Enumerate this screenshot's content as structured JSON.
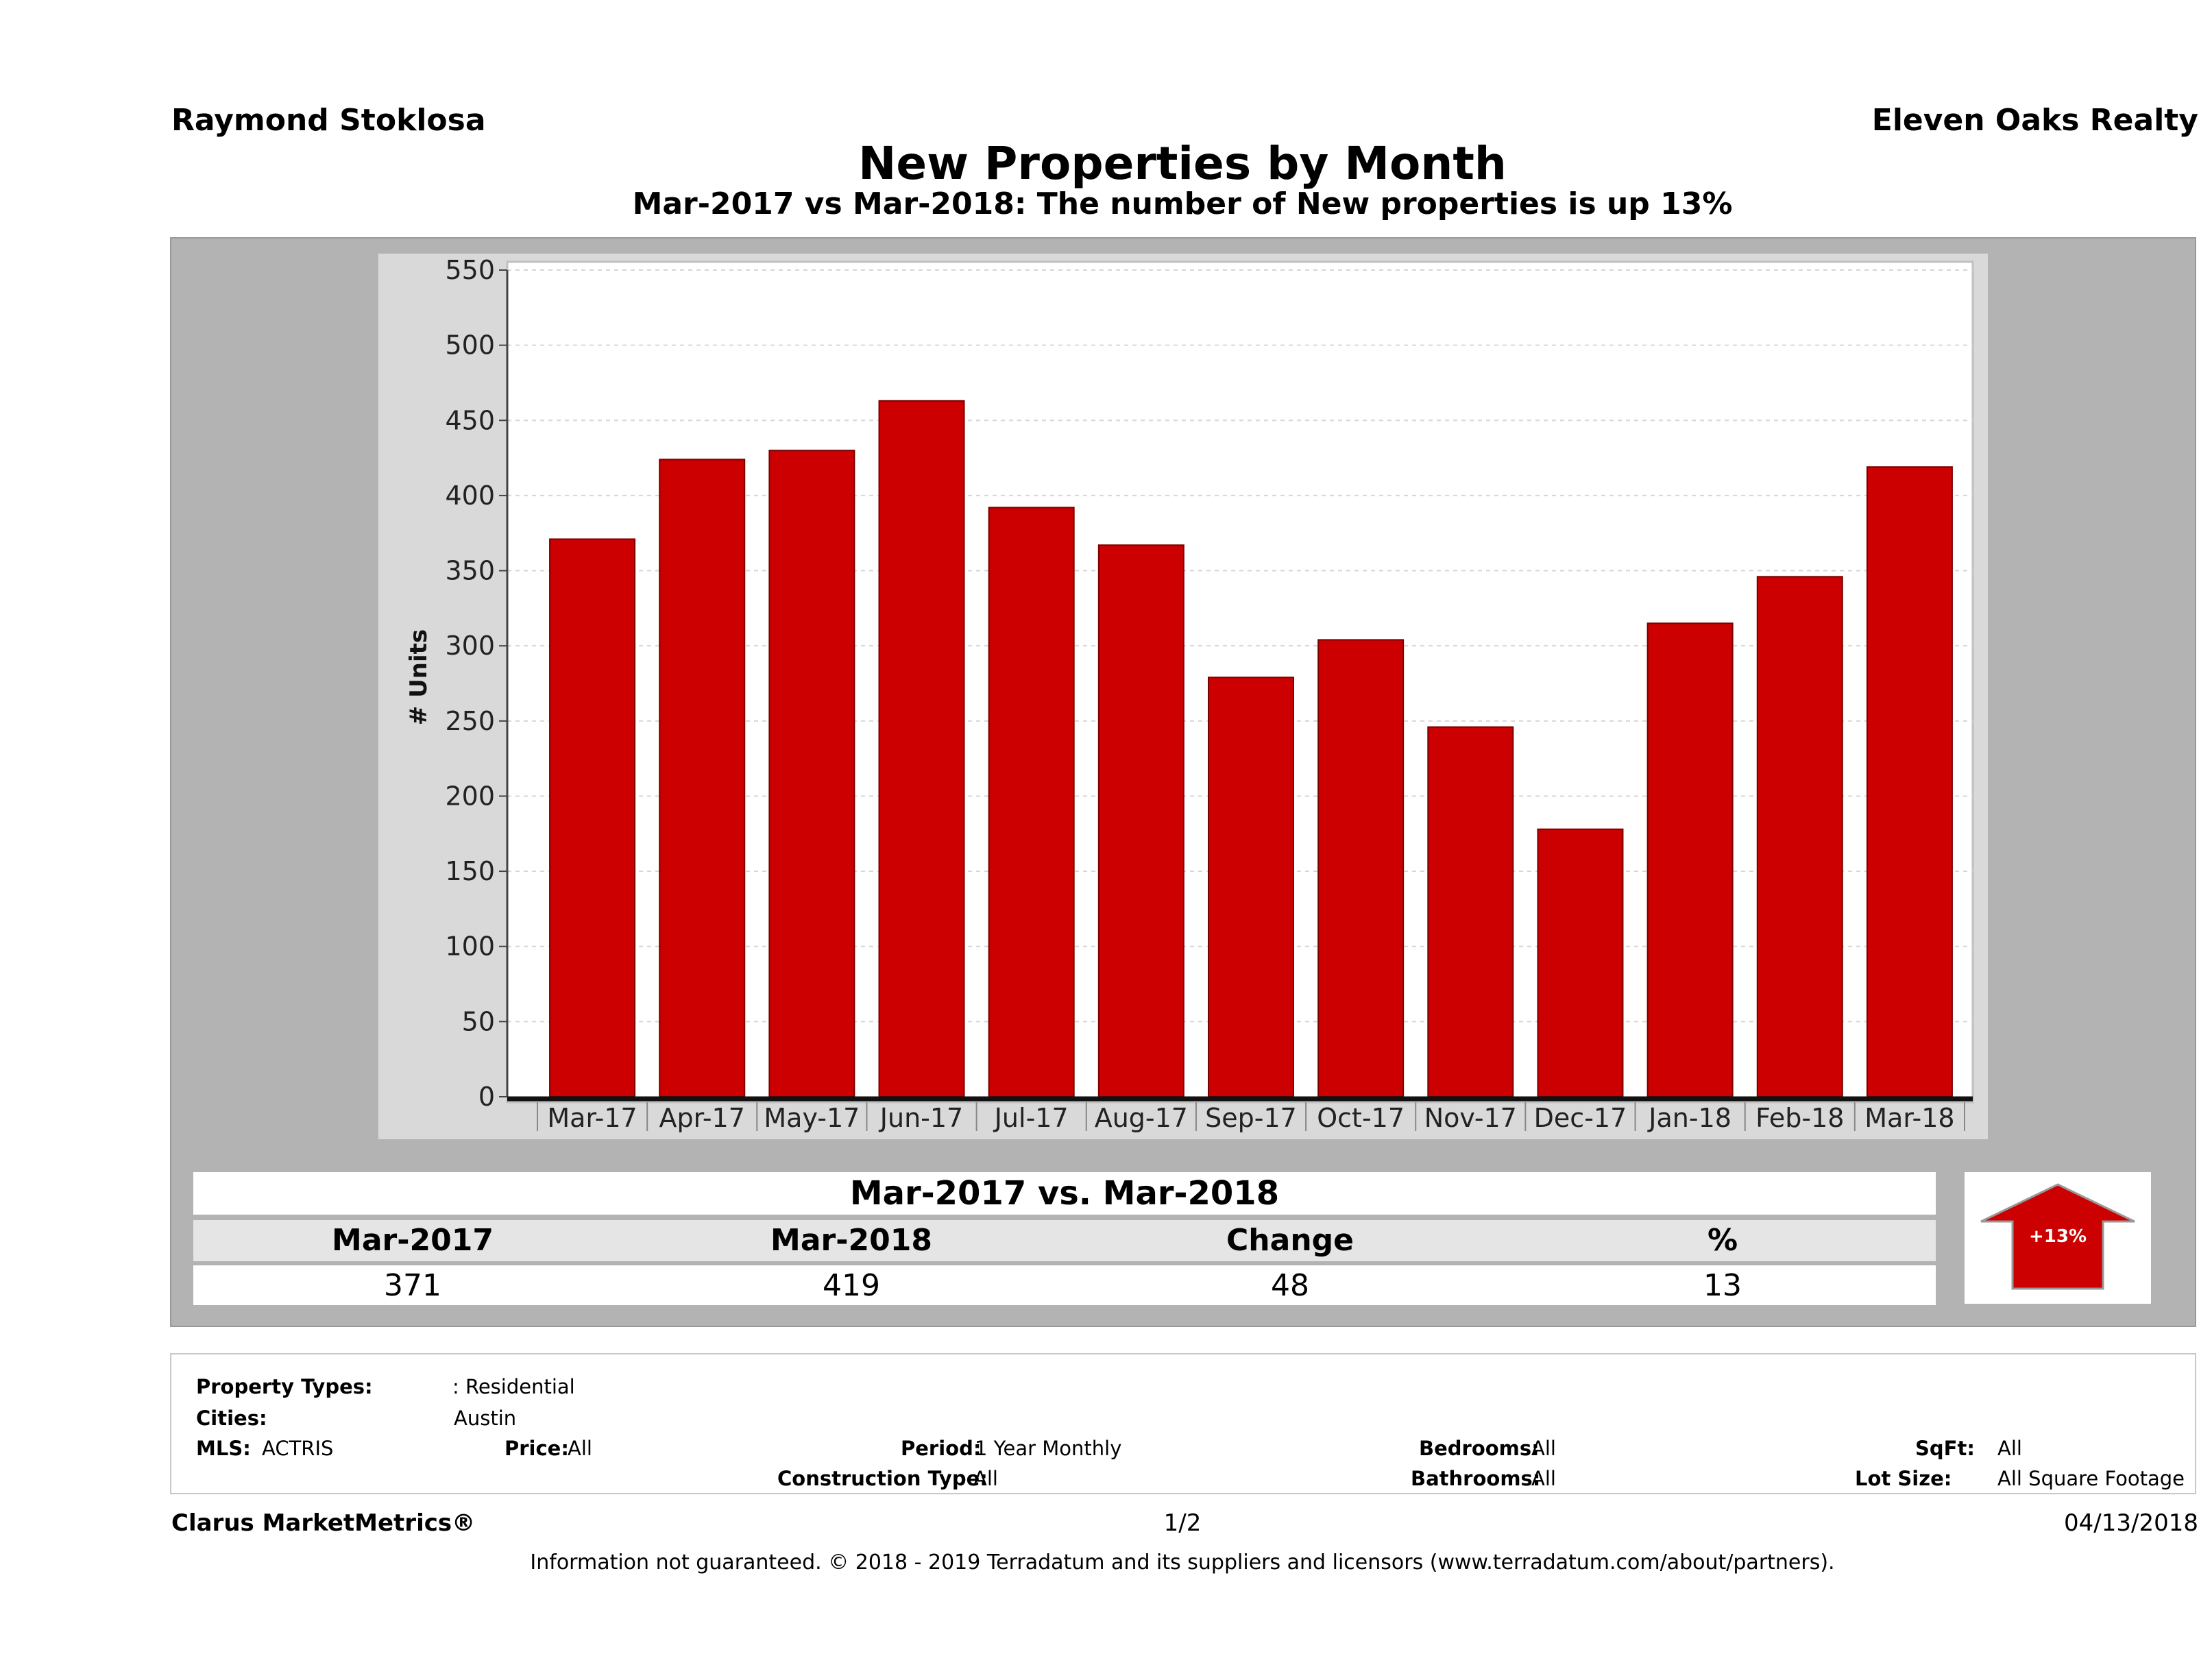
{
  "header": {
    "agent_name": "Raymond Stoklosa",
    "brokerage": "Eleven Oaks Realty",
    "title": "New Properties by Month",
    "subtitle": "Mar-2017 vs Mar-2018: The number of New  properties is up 13%"
  },
  "chart_data": {
    "type": "bar",
    "title": "New Properties by Month",
    "ylabel": "# Units",
    "xlabel": "",
    "ylim": [
      0,
      550
    ],
    "yticks": [
      0,
      50,
      100,
      150,
      200,
      250,
      300,
      350,
      400,
      450,
      500,
      550
    ],
    "categories": [
      "Mar-17",
      "Apr-17",
      "May-17",
      "Jun-17",
      "Jul-17",
      "Aug-17",
      "Sep-17",
      "Oct-17",
      "Nov-17",
      "Dec-17",
      "Jan-18",
      "Feb-18",
      "Mar-18"
    ],
    "values": [
      371,
      424,
      430,
      463,
      392,
      367,
      279,
      304,
      246,
      178,
      315,
      346,
      419
    ],
    "grid": true,
    "bar_color": "#cc0000"
  },
  "summary": {
    "heading": "Mar-2017 vs. Mar-2018",
    "columns": [
      "Mar-2017",
      "Mar-2018",
      "Change",
      "%"
    ],
    "values": [
      "371",
      "419",
      "48",
      "13"
    ],
    "badge": "+13%",
    "badge_color": "#cc0000"
  },
  "filters": {
    "property_types_label": "Property Types:",
    "property_types_value": ": Residential",
    "cities_label": "Cities:",
    "cities_value": "Austin",
    "mls_label": "MLS:",
    "mls_value": "ACTRIS",
    "price_label": "Price:",
    "price_value": "All",
    "period_label": "Period:",
    "period_value": "1 Year Monthly",
    "bedrooms_label": "Bedrooms:",
    "bedrooms_value": "All",
    "sqft_label": "SqFt:",
    "sqft_value": "All",
    "construction_label": "Construction Type:",
    "construction_value": "All",
    "bathrooms_label": "Bathrooms:",
    "bathrooms_value": "All",
    "lot_label": "Lot Size:",
    "lot_value": "All Square Footage"
  },
  "footer": {
    "brand": "Clarus MarketMetrics®",
    "page": "1/2",
    "date": "04/13/2018",
    "disclaimer": "Information not guaranteed. © 2018 - 2019 Terradatum and its suppliers and licensors (www.terradatum.com/about/partners)."
  }
}
